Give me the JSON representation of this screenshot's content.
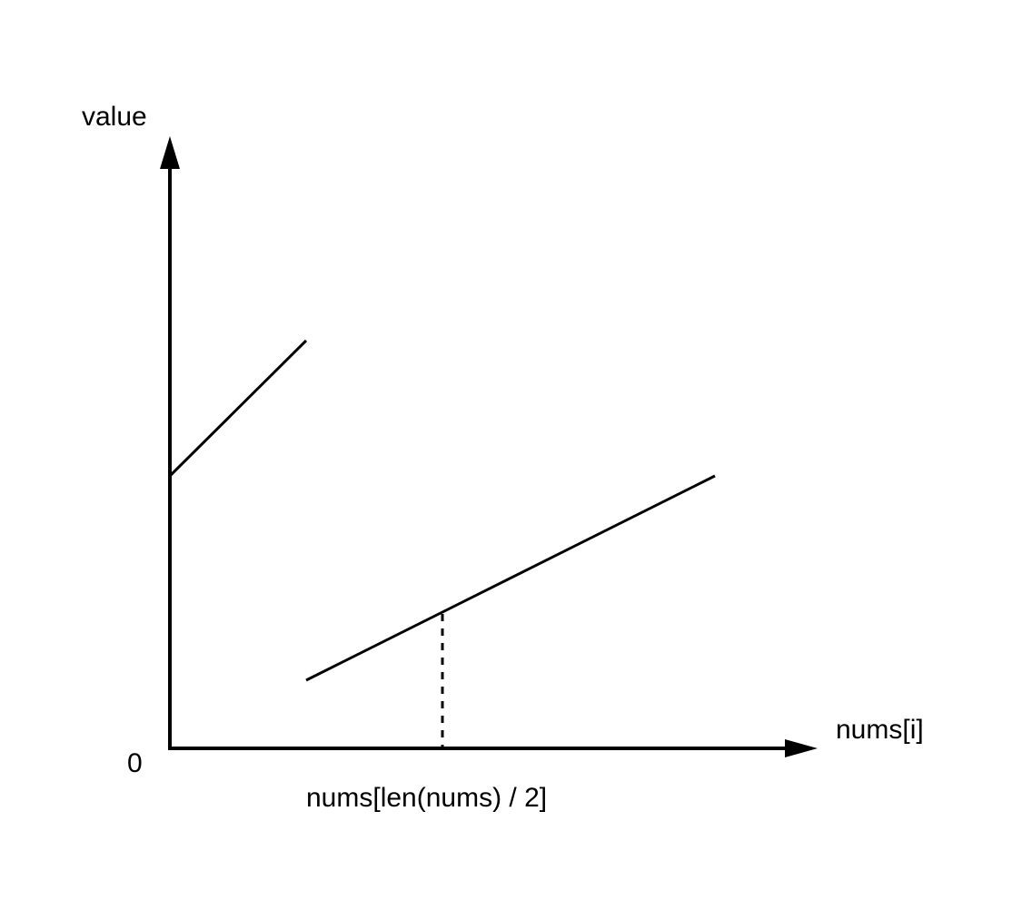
{
  "diagram": {
    "y_axis_label": "value",
    "x_axis_label": "nums[i]",
    "origin_label": "0",
    "median_label": "nums[len(nums) / 2]"
  },
  "colors": {
    "stroke": "#000000",
    "background": "#ffffff"
  }
}
